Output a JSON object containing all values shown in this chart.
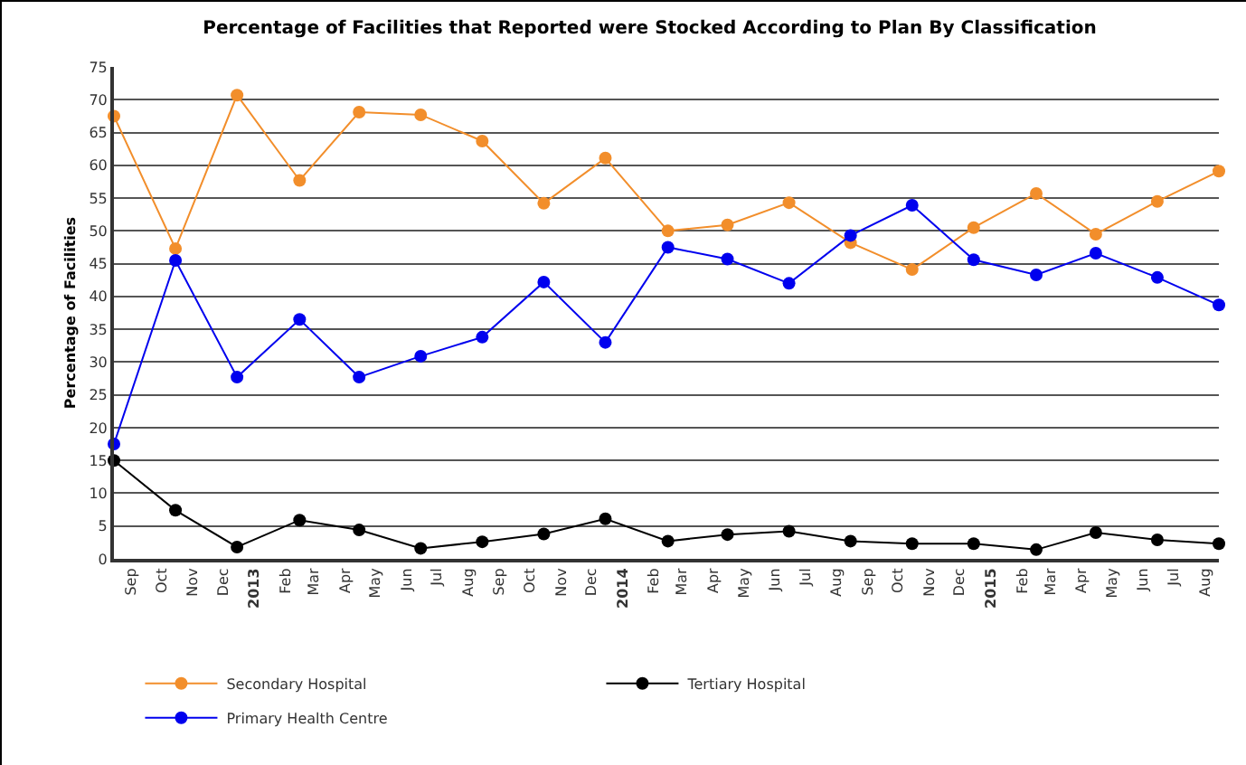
{
  "chart_data": {
    "type": "line",
    "title": "Percentage of Facilities that Reported were Stocked According to Plan By Classification",
    "ylabel": "Percentage of Facilities",
    "x": [
      "2012-08-15",
      "2012-10-15",
      "2012-12-15",
      "2013-02-15",
      "2013-04-15",
      "2013-06-15",
      "2013-08-15",
      "2013-10-15",
      "2013-12-15",
      "2014-02-15",
      "2014-04-15",
      "2014-06-15",
      "2014-08-15",
      "2014-10-15",
      "2014-12-15",
      "2015-02-15",
      "2015-04-15",
      "2015-06-15",
      "2015-08-15"
    ],
    "series": [
      {
        "name": "Secondary Hospital",
        "color": "#f28e2b",
        "values": [
          67.5,
          47.3,
          70.7,
          57.7,
          68.1,
          67.7,
          63.7,
          54.2,
          61.1,
          50.0,
          50.9,
          54.3,
          48.2,
          44.1,
          50.5,
          55.7,
          49.5,
          54.5,
          59.1
        ]
      },
      {
        "name": "Tertiary Hospital",
        "color": "#000000",
        "values": [
          15.0,
          7.4,
          1.8,
          5.9,
          4.4,
          1.6,
          2.6,
          3.8,
          6.1,
          2.7,
          3.7,
          4.2,
          2.7,
          2.3,
          2.3,
          1.4,
          4.0,
          2.9,
          2.3
        ]
      },
      {
        "name": "Primary Health Centre",
        "color": "#0000ee",
        "values": [
          17.5,
          45.5,
          27.7,
          36.5,
          27.7,
          30.9,
          33.8,
          42.2,
          33.0,
          47.5,
          45.7,
          42.0,
          49.3,
          53.9,
          45.6,
          43.3,
          46.6,
          42.9,
          38.7
        ]
      }
    ],
    "xlim": [
      "2012-08-15",
      "2015-08-15"
    ],
    "xticks": [
      {
        "value": "2012-09-01",
        "label": "Sep"
      },
      {
        "value": "2012-10-01",
        "label": "Oct"
      },
      {
        "value": "2012-11-01",
        "label": "Nov"
      },
      {
        "value": "2012-12-01",
        "label": "Dec"
      },
      {
        "value": "2013-01-01",
        "label": "2013"
      },
      {
        "value": "2013-02-01",
        "label": "Feb"
      },
      {
        "value": "2013-03-01",
        "label": "Mar"
      },
      {
        "value": "2013-04-01",
        "label": "Apr"
      },
      {
        "value": "2013-05-01",
        "label": "May"
      },
      {
        "value": "2013-06-01",
        "label": "Jun"
      },
      {
        "value": "2013-07-01",
        "label": "Jul"
      },
      {
        "value": "2013-08-01",
        "label": "Aug"
      },
      {
        "value": "2013-09-01",
        "label": "Sep"
      },
      {
        "value": "2013-10-01",
        "label": "Oct"
      },
      {
        "value": "2013-11-01",
        "label": "Nov"
      },
      {
        "value": "2013-12-01",
        "label": "Dec"
      },
      {
        "value": "2014-01-01",
        "label": "2014"
      },
      {
        "value": "2014-02-01",
        "label": "Feb"
      },
      {
        "value": "2014-03-01",
        "label": "Mar"
      },
      {
        "value": "2014-04-01",
        "label": "Apr"
      },
      {
        "value": "2014-05-01",
        "label": "May"
      },
      {
        "value": "2014-06-01",
        "label": "Jun"
      },
      {
        "value": "2014-07-01",
        "label": "Jul"
      },
      {
        "value": "2014-08-01",
        "label": "Aug"
      },
      {
        "value": "2014-09-01",
        "label": "Sep"
      },
      {
        "value": "2014-10-01",
        "label": "Oct"
      },
      {
        "value": "2014-11-01",
        "label": "Nov"
      },
      {
        "value": "2014-12-01",
        "label": "Dec"
      },
      {
        "value": "2015-01-01",
        "label": "2015"
      },
      {
        "value": "2015-02-01",
        "label": "Feb"
      },
      {
        "value": "2015-03-01",
        "label": "Mar"
      },
      {
        "value": "2015-04-01",
        "label": "Apr"
      },
      {
        "value": "2015-05-01",
        "label": "May"
      },
      {
        "value": "2015-06-01",
        "label": "Jun"
      },
      {
        "value": "2015-07-01",
        "label": "Jul"
      },
      {
        "value": "2015-08-01",
        "label": "Aug"
      }
    ],
    "ylim": [
      0,
      75
    ],
    "yticks": [
      0,
      5,
      10,
      15,
      20,
      25,
      30,
      35,
      40,
      45,
      50,
      55,
      60,
      65,
      70,
      75
    ],
    "grid": "y",
    "legend": "bottom",
    "marker": "circle",
    "line_style": "solid"
  }
}
